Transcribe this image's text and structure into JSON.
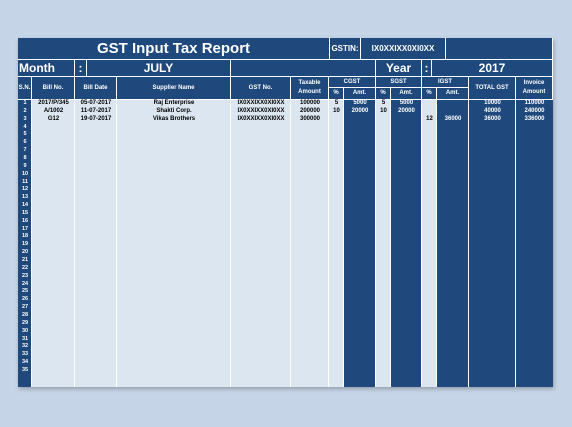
{
  "report": {
    "title": "GST Input Tax Report",
    "gstin_label": "GSTIN:",
    "gstin_value": "IX0XXIXX0XI0XX",
    "month_label": "Month",
    "colon": ":",
    "month_value": "JULY",
    "year_label": "Year",
    "year_value": "2017"
  },
  "columns": {
    "sn": "S.N.",
    "bill_no": "Bill No.",
    "bill_date": "Bill Date",
    "supplier": "Supplier Name",
    "gst_no": "GST No.",
    "taxable": "Taxable Amount",
    "cgst": "CGST",
    "sgst": "SGST",
    "igst": "IGST",
    "pct": "%",
    "amt": "Amt.",
    "total_gst": "TOTAL GST",
    "invoice": "Invoice Amount"
  },
  "rows": [
    {
      "bill_no": "2017/P/345",
      "date": "05-07-2017",
      "supplier": "Raj Enterprise",
      "gst": "IX0XXIXX0XI0XX",
      "taxable": "100000",
      "cgst_pct": "5",
      "cgst_amt": "5000",
      "sgst_pct": "5",
      "sgst_amt": "5000",
      "igst_pct": "",
      "igst_amt": "",
      "total_gst": "10000",
      "invoice": "110000"
    },
    {
      "bill_no": "A/1002",
      "date": "11-07-2017",
      "supplier": "Shakti Corp.",
      "gst": "IX0XXIXX0XI0XX",
      "taxable": "200000",
      "cgst_pct": "10",
      "cgst_amt": "20000",
      "sgst_pct": "10",
      "sgst_amt": "20000",
      "igst_pct": "",
      "igst_amt": "",
      "total_gst": "40000",
      "invoice": "240000"
    },
    {
      "bill_no": "G12",
      "date": "19-07-2017",
      "supplier": "Vikas Brothers",
      "gst": "IX0XXIXX0XI0XX",
      "taxable": "300000",
      "cgst_pct": "",
      "cgst_amt": "",
      "sgst_pct": "",
      "sgst_amt": "",
      "igst_pct": "12",
      "igst_amt": "36000",
      "total_gst": "36000",
      "invoice": "336000"
    }
  ],
  "serials": [
    "1",
    "2",
    "3",
    "4",
    "5",
    "6",
    "7",
    "8",
    "9",
    "10",
    "11",
    "12",
    "13",
    "14",
    "15",
    "16",
    "17",
    "18",
    "19",
    "20",
    "21",
    "22",
    "23",
    "24",
    "25",
    "26",
    "27",
    "28",
    "29",
    "30",
    "31",
    "32",
    "33",
    "34",
    "35"
  ],
  "colors": {
    "header_bg": "#1f497d",
    "light_column": "#dce6f1",
    "page_bg": "#c5d4e6"
  }
}
